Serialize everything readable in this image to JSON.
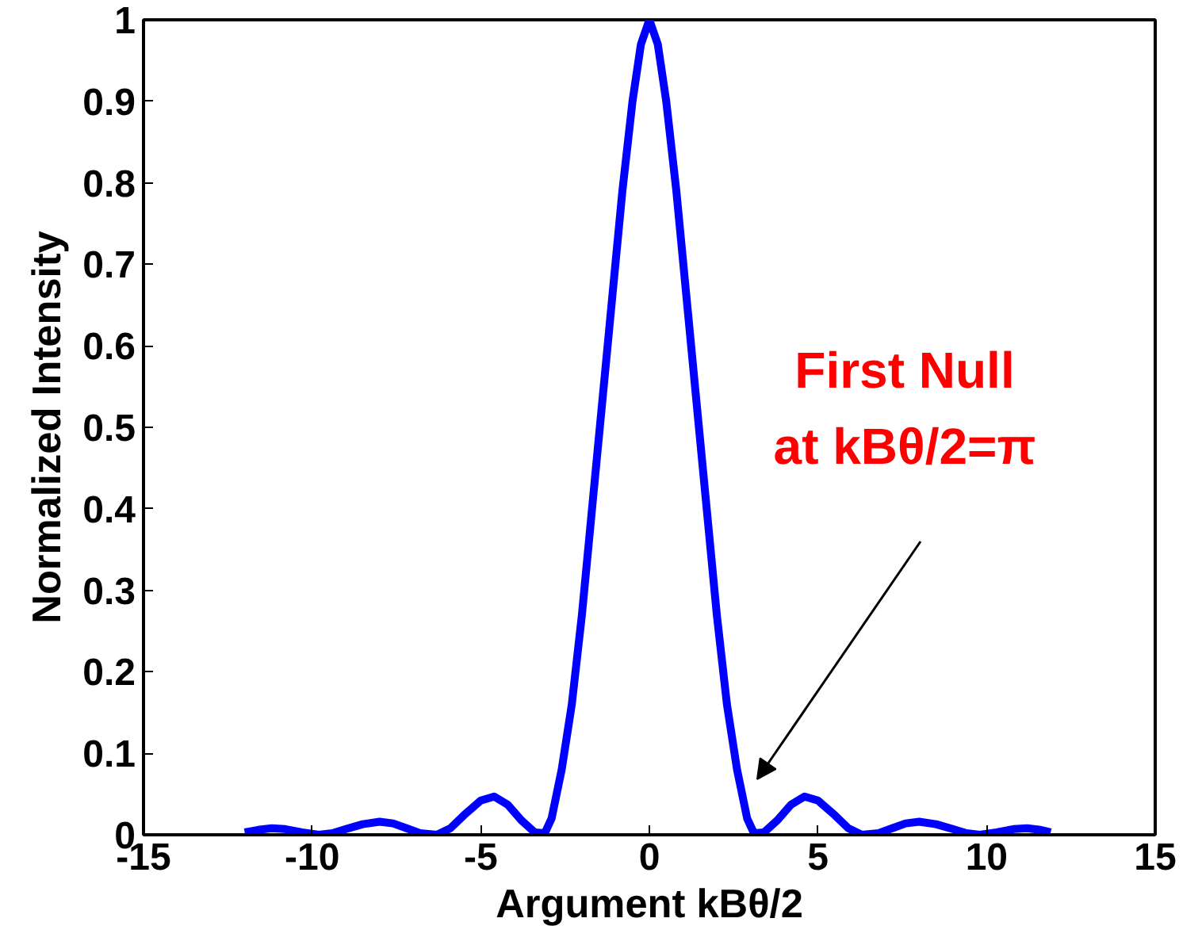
{
  "chart_data": {
    "type": "line",
    "xlabel": "Argument kBθ/2",
    "ylabel": "Normalized Intensity",
    "x": [
      -12,
      -11.6,
      -11.2,
      -10.8,
      -10.3,
      -9.8,
      -9.4,
      -9,
      -8.5,
      -8,
      -7.6,
      -7.2,
      -6.8,
      -6.3,
      -5.9,
      -5.5,
      -5,
      -4.6,
      -4.2,
      -3.8,
      -3.4,
      -3.1,
      -2.9,
      -2.6,
      -2.3,
      -2,
      -1.7,
      -1.4,
      -1.1,
      -0.8,
      -0.5,
      -0.25,
      0,
      0.25,
      0.5,
      0.8,
      1.1,
      1.4,
      1.7,
      2,
      2.3,
      2.6,
      2.9,
      3.1,
      3.4,
      3.8,
      4.2,
      4.6,
      5,
      5.5,
      5.9,
      6.3,
      6.8,
      7.2,
      7.6,
      8,
      8.5,
      9,
      9.4,
      9.8,
      10.3,
      10.8,
      11.2,
      11.6,
      11.9
    ],
    "series": [
      {
        "color": "#0000ff",
        "values": [
          0.003,
          0.006,
          0.008,
          0.007,
          0.003,
          0.0,
          0.002,
          0.007,
          0.013,
          0.016,
          0.014,
          0.008,
          0.002,
          0.0,
          0.008,
          0.024,
          0.042,
          0.047,
          0.037,
          0.018,
          0.003,
          0.002,
          0.02,
          0.08,
          0.16,
          0.27,
          0.4,
          0.53,
          0.66,
          0.79,
          0.9,
          0.97,
          1.0,
          0.97,
          0.9,
          0.79,
          0.66,
          0.53,
          0.4,
          0.27,
          0.16,
          0.08,
          0.02,
          0.002,
          0.003,
          0.018,
          0.037,
          0.047,
          0.042,
          0.024,
          0.008,
          0.0,
          0.002,
          0.008,
          0.014,
          0.016,
          0.013,
          0.007,
          0.002,
          0.0,
          0.003,
          0.007,
          0.008,
          0.006,
          0.003
        ]
      }
    ],
    "xlim": [
      -15,
      15
    ],
    "ylim": [
      0,
      1
    ],
    "xticks": [
      -15,
      -10,
      -5,
      0,
      5,
      10,
      15
    ],
    "yticks": [
      0,
      0.1,
      0.2,
      0.3,
      0.4,
      0.5,
      0.6,
      0.7,
      0.8,
      0.9,
      1
    ],
    "grid": false,
    "annotations": [
      "First Null\nat kBθ/2=π"
    ]
  }
}
